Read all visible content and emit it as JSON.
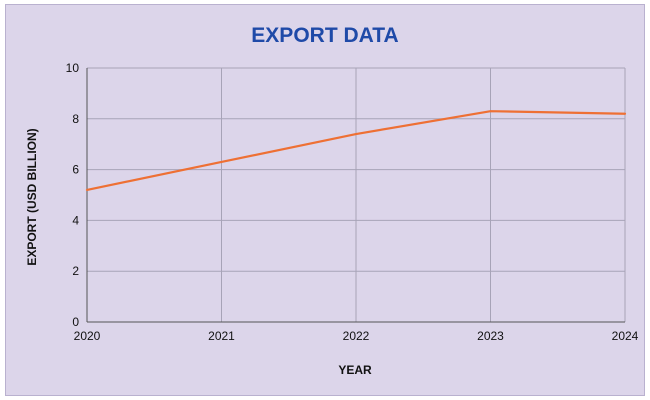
{
  "chart_data": {
    "type": "line",
    "title": "EXPORT DATA",
    "xlabel": "YEAR",
    "ylabel": "EXPORT (USD BILLION)",
    "x": [
      "2020",
      "2021",
      "2022",
      "2023",
      "2024"
    ],
    "y_ticks": [
      "0",
      "2",
      "4",
      "6",
      "8",
      "10"
    ],
    "ylim": [
      0,
      10
    ],
    "grid": true,
    "legend": "none",
    "series": [
      {
        "values": [
          5.2,
          6.3,
          7.4,
          8.3,
          8.2
        ],
        "color": "#ee7034"
      }
    ],
    "colors": {
      "background": "#dcd5ea",
      "title": "#1f4aa8",
      "grid": "#a7a3b7"
    }
  }
}
